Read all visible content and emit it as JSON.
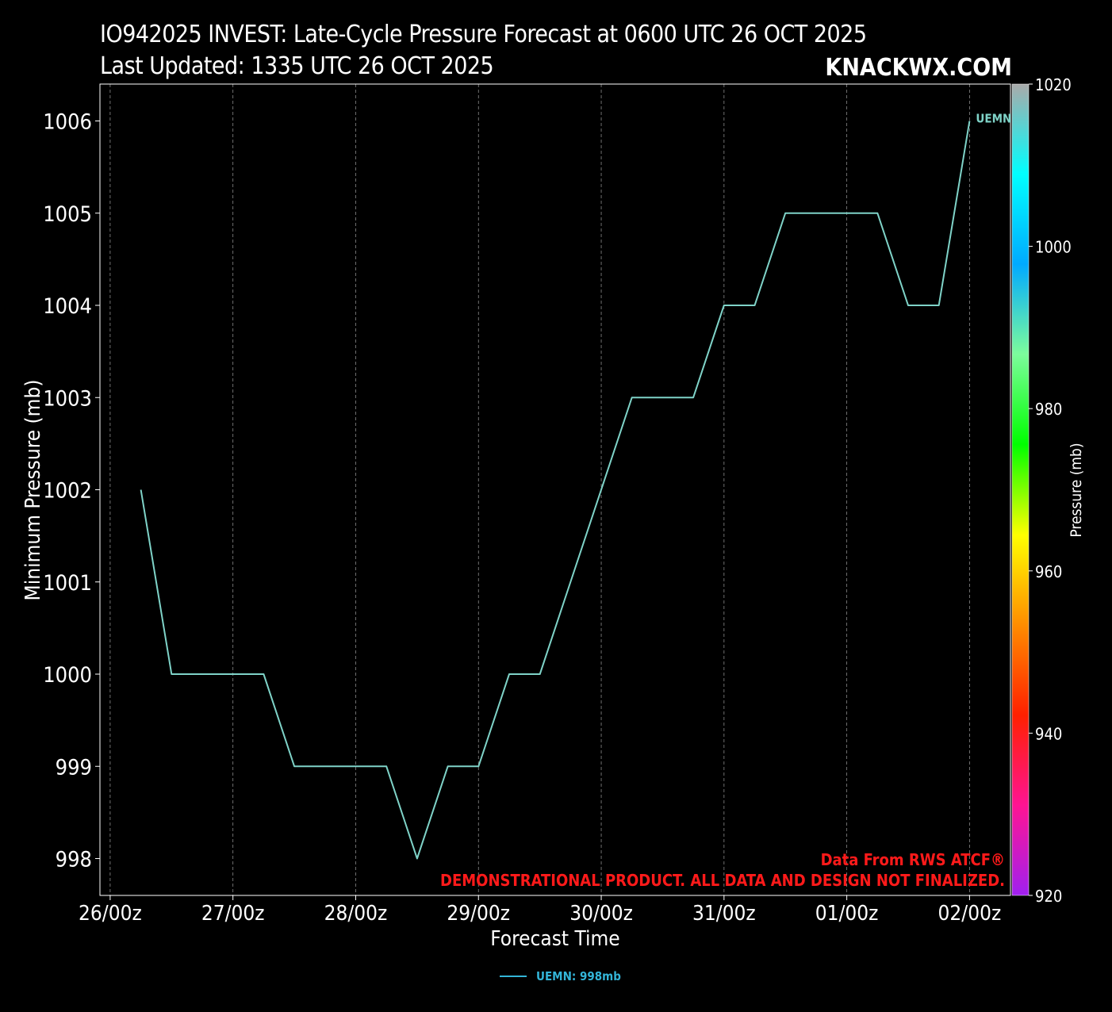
{
  "header": {
    "title": "IO942025 INVEST: Late-Cycle Pressure Forecast at 0600 UTC 26 OCT 2025",
    "subtitle": "Last Updated: 1335 UTC 26 OCT 2025",
    "brand": "KNACKWX.COM"
  },
  "notes": {
    "source": "Data From RWS ATCF®",
    "disclaimer": "DEMONSTRATIONAL PRODUCT. ALL DATA AND DESIGN NOT FINALIZED."
  },
  "legend": {
    "label": "UEMN: 998mb",
    "color": "#33b5d8"
  },
  "colorbar": {
    "label": "Pressure (mb)",
    "ticks": [
      1020,
      1000,
      980,
      960,
      940,
      920
    ],
    "range": [
      920,
      1020
    ],
    "colors": [
      "#a020f0",
      "#ff1493",
      "#ff2000",
      "#ff8c00",
      "#ffff00",
      "#00ff00",
      "#7cfc9c",
      "#00aaff",
      "#00ffff",
      "#aaaaaa"
    ]
  },
  "chart_data": {
    "type": "line",
    "xlabel": "Forecast Time",
    "ylabel": "Minimum Pressure (mb)",
    "x_tick_labels": [
      "26/00z",
      "27/00z",
      "28/00z",
      "29/00z",
      "30/00z",
      "31/00z",
      "01/00z",
      "02/00z"
    ],
    "y_ticks": [
      998,
      999,
      1000,
      1001,
      1002,
      1003,
      1004,
      1005,
      1006
    ],
    "ylim": [
      997.6,
      1006.4
    ],
    "xlim": [
      "2025-10-25 22:00",
      "2025-11-02 08:00"
    ],
    "grid": "vertical dashed at x ticks",
    "series": [
      {
        "name": "UEMN",
        "color": "#7fd3c8",
        "end_label": "UEMN",
        "x": [
          "2025-10-26 06:00",
          "2025-10-26 12:00",
          "2025-10-26 18:00",
          "2025-10-27 00:00",
          "2025-10-27 06:00",
          "2025-10-27 12:00",
          "2025-10-27 18:00",
          "2025-10-28 00:00",
          "2025-10-28 06:00",
          "2025-10-28 12:00",
          "2025-10-28 18:00",
          "2025-10-29 00:00",
          "2025-10-29 06:00",
          "2025-10-29 12:00",
          "2025-10-29 18:00",
          "2025-10-30 00:00",
          "2025-10-30 06:00",
          "2025-10-30 12:00",
          "2025-10-30 18:00",
          "2025-10-31 00:00",
          "2025-10-31 06:00",
          "2025-10-31 12:00",
          "2025-10-31 18:00",
          "2025-11-01 00:00",
          "2025-11-01 06:00",
          "2025-11-01 12:00",
          "2025-11-01 18:00",
          "2025-11-02 00:00"
        ],
        "y": [
          1002,
          1000,
          1000,
          1000,
          1000,
          999,
          999,
          999,
          999,
          998,
          999,
          999,
          1000,
          1000,
          1001,
          1002,
          1003,
          1003,
          1003,
          1004,
          1004,
          1005,
          1005,
          1005,
          1005,
          1004,
          1004,
          1006
        ]
      }
    ]
  }
}
